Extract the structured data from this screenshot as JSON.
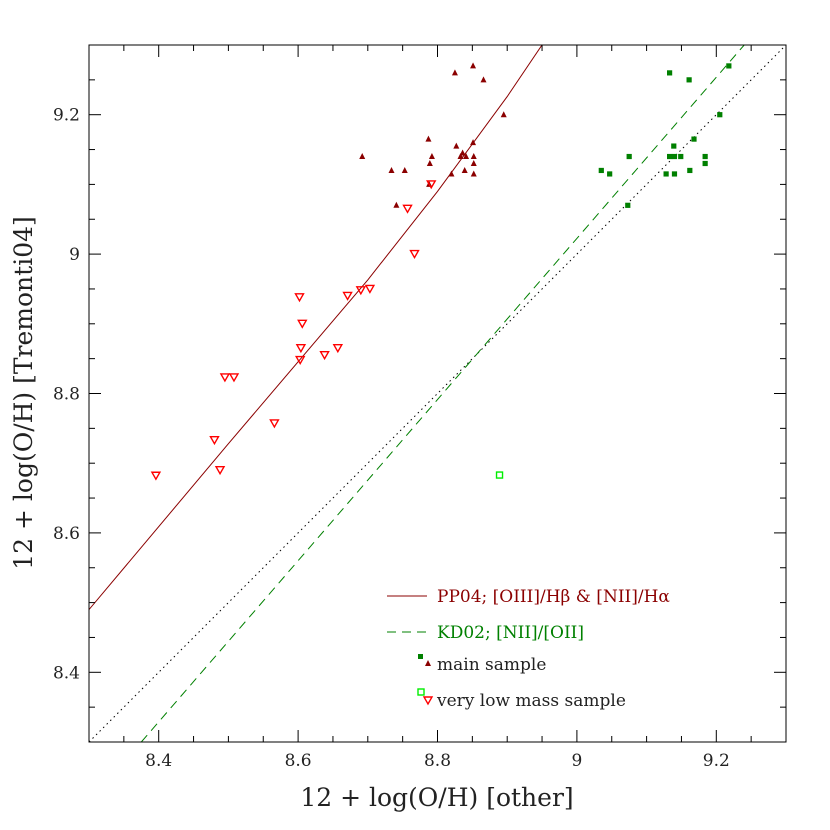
{
  "chart_data": {
    "type": "scatter",
    "xlabel": "12 + log(O/H) [other]",
    "ylabel": "12 + log(O/H) [Tremonti04]",
    "xlim": [
      8.3,
      9.3
    ],
    "ylim": [
      8.3,
      9.3
    ],
    "x_ticks": [
      "8.4",
      "8.6",
      "8.8",
      "9",
      "9.2"
    ],
    "y_ticks": [
      "8.4",
      "8.6",
      "8.8",
      "9",
      "9.2"
    ],
    "grid": false,
    "legend_position": "bottom-right",
    "colors": {
      "pp04": "#8b0000",
      "kd02": "#008000",
      "pp04_low": "#ff0000",
      "kd02_low": "#00ee00",
      "one_to_one": "#000000"
    },
    "legend": {
      "pp04": "PP04; [OIII]/Hβ & [NII]/Hα",
      "kd02": "KD02; [NII]/[OII]",
      "main": "main sample",
      "low": "very low mass sample"
    },
    "lines": {
      "one_to_one": [
        [
          8.3,
          8.3
        ],
        [
          9.3,
          9.3
        ]
      ],
      "pp04_fit": [
        [
          8.3,
          8.49
        ],
        [
          8.5,
          8.728
        ],
        [
          8.7,
          8.963
        ],
        [
          8.8,
          9.09
        ],
        [
          8.9,
          9.226
        ],
        [
          8.95,
          9.3
        ]
      ],
      "kd02_fit": [
        [
          8.375,
          8.3
        ],
        [
          9.24,
          9.3
        ]
      ]
    },
    "series": [
      {
        "name": "PP04 main sample",
        "marker": "filled-triangle",
        "points": [
          [
            8.825,
            9.26
          ],
          [
            8.851,
            9.27
          ],
          [
            8.866,
            9.25
          ],
          [
            8.895,
            9.2
          ],
          [
            8.851,
            9.16
          ],
          [
            8.827,
            9.155
          ],
          [
            8.787,
            9.165
          ],
          [
            8.692,
            9.14
          ],
          [
            8.792,
            9.14
          ],
          [
            8.836,
            9.145
          ],
          [
            8.841,
            9.14
          ],
          [
            8.852,
            9.14
          ],
          [
            8.833,
            9.14
          ],
          [
            8.852,
            9.13
          ],
          [
            8.789,
            9.13
          ],
          [
            8.734,
            9.12
          ],
          [
            8.753,
            9.12
          ],
          [
            8.82,
            9.115
          ],
          [
            8.852,
            9.115
          ],
          [
            8.839,
            9.12
          ],
          [
            8.788,
            9.1
          ],
          [
            8.741,
            9.07
          ]
        ]
      },
      {
        "name": "KD02 main sample",
        "marker": "filled-square",
        "points": [
          [
            9.133,
            9.26
          ],
          [
            9.218,
            9.27
          ],
          [
            9.161,
            9.25
          ],
          [
            9.205,
            9.2
          ],
          [
            9.168,
            9.165
          ],
          [
            9.139,
            9.155
          ],
          [
            9.075,
            9.14
          ],
          [
            9.133,
            9.14
          ],
          [
            9.149,
            9.14
          ],
          [
            9.184,
            9.14
          ],
          [
            9.14,
            9.14
          ],
          [
            9.184,
            9.13
          ],
          [
            9.035,
            9.12
          ],
          [
            9.162,
            9.12
          ],
          [
            9.128,
            9.115
          ],
          [
            9.14,
            9.115
          ],
          [
            9.047,
            9.115
          ],
          [
            9.073,
            9.07
          ]
        ]
      },
      {
        "name": "PP04 very low mass sample",
        "marker": "open-triangle-down",
        "points": [
          [
            8.791,
            9.1
          ],
          [
            8.757,
            9.065
          ],
          [
            8.767,
            9.0
          ],
          [
            8.602,
            8.938
          ],
          [
            8.671,
            8.94
          ],
          [
            8.69,
            8.948
          ],
          [
            8.703,
            8.95
          ],
          [
            8.606,
            8.9
          ],
          [
            8.604,
            8.865
          ],
          [
            8.657,
            8.865
          ],
          [
            8.638,
            8.855
          ],
          [
            8.603,
            8.848
          ],
          [
            8.495,
            8.823
          ],
          [
            8.508,
            8.823
          ],
          [
            8.566,
            8.757
          ],
          [
            8.48,
            8.733
          ],
          [
            8.488,
            8.69
          ],
          [
            8.396,
            8.682
          ]
        ]
      },
      {
        "name": "KD02 very low mass sample",
        "marker": "open-square",
        "points": [
          [
            8.889,
            8.683
          ]
        ]
      }
    ]
  }
}
